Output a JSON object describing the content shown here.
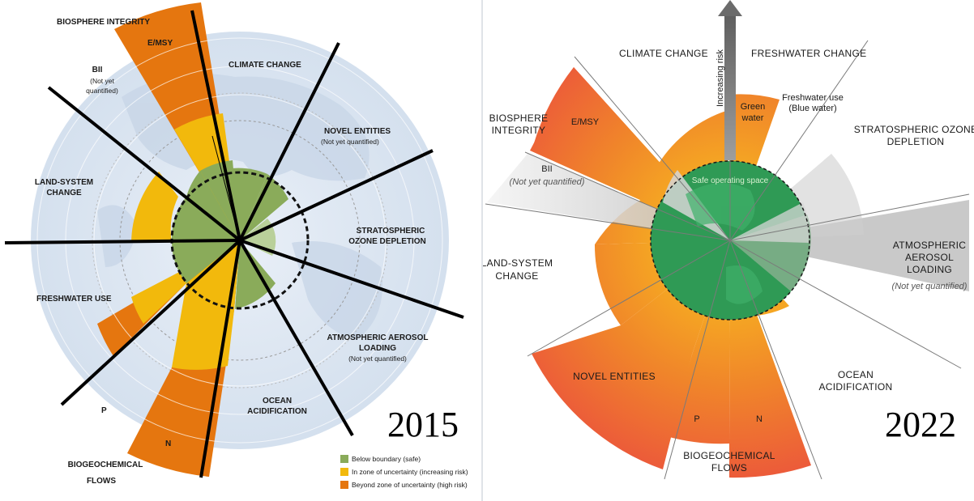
{
  "panel_2015": {
    "year": "2015",
    "labels": {
      "biosphere": "BIOSPHERE INTEGRITY",
      "emsy": "E/MSY",
      "bii": "BII",
      "bii_note1": "(Not yet",
      "bii_note2": "quantified)",
      "climate": "CLIMATE CHANGE",
      "novel": "NOVEL ENTITIES",
      "novel_note": "(Not yet quantified)",
      "ozone1": "STRATOSPHERIC",
      "ozone2": "OZONE DEPLETION",
      "aerosol1": "ATMOSPHERIC AEROSOL",
      "aerosol2": "LOADING",
      "aerosol_note": "(Not yet quantified)",
      "ocean1": "OCEAN",
      "ocean2": "ACIDIFICATION",
      "land1": "LAND-SYSTEM",
      "land2": "CHANGE",
      "freshwater": "FRESHWATER USE",
      "p": "P",
      "n": "N",
      "biogeo1": "BIOGEOCHEMICAL",
      "biogeo2": "FLOWS"
    },
    "legend": [
      {
        "text": "Below boundary (safe)",
        "color": "#8aab5a"
      },
      {
        "text": "In zone of uncertainty (increasing risk)",
        "color": "#f2b90c"
      },
      {
        "text": "Beyond zone of uncertainty (high risk)",
        "color": "#e5760f"
      }
    ]
  },
  "panel_2022": {
    "year": "2022",
    "labels": {
      "climate": "CLIMATE CHANGE",
      "freshwater": "FRESHWATER CHANGE",
      "green1": "Green",
      "green2": "water",
      "blue1": "Freshwater use",
      "blue2": "(Blue water)",
      "ozone1": "STRATOSPHERIC OZONE",
      "ozone2": "DEPLETION",
      "aerosol1": "ATMOSPHERIC",
      "aerosol2": "AEROSOL",
      "aerosol3": "LOADING",
      "aerosol_note": "(Not yet quantified)",
      "ocean1": "OCEAN",
      "ocean2": "ACIDIFICATION",
      "biogeo1": "BIOGEOCHEMICAL",
      "biogeo2": "FLOWS",
      "p": "P",
      "n": "N",
      "novel": "NOVEL ENTITIES",
      "land1": "LAND-SYSTEM",
      "land2": "CHANGE",
      "bii": "BII",
      "bii_note": "(Not yet quantified)",
      "biosphere1": "BIOSPHERE",
      "biosphere2": "INTEGRITY",
      "emsy": "E/MSY",
      "safe": "Safe operating space",
      "risk": "Increasing risk"
    }
  },
  "colors": {
    "safe_green": "#8aab5a",
    "uncertain_yellow": "#f2b90c",
    "high_orange": "#e5760f",
    "green_2022": "#2f9a55",
    "red_2022": "#ec5a3a",
    "globe_blue": "#dfe8f3"
  }
}
